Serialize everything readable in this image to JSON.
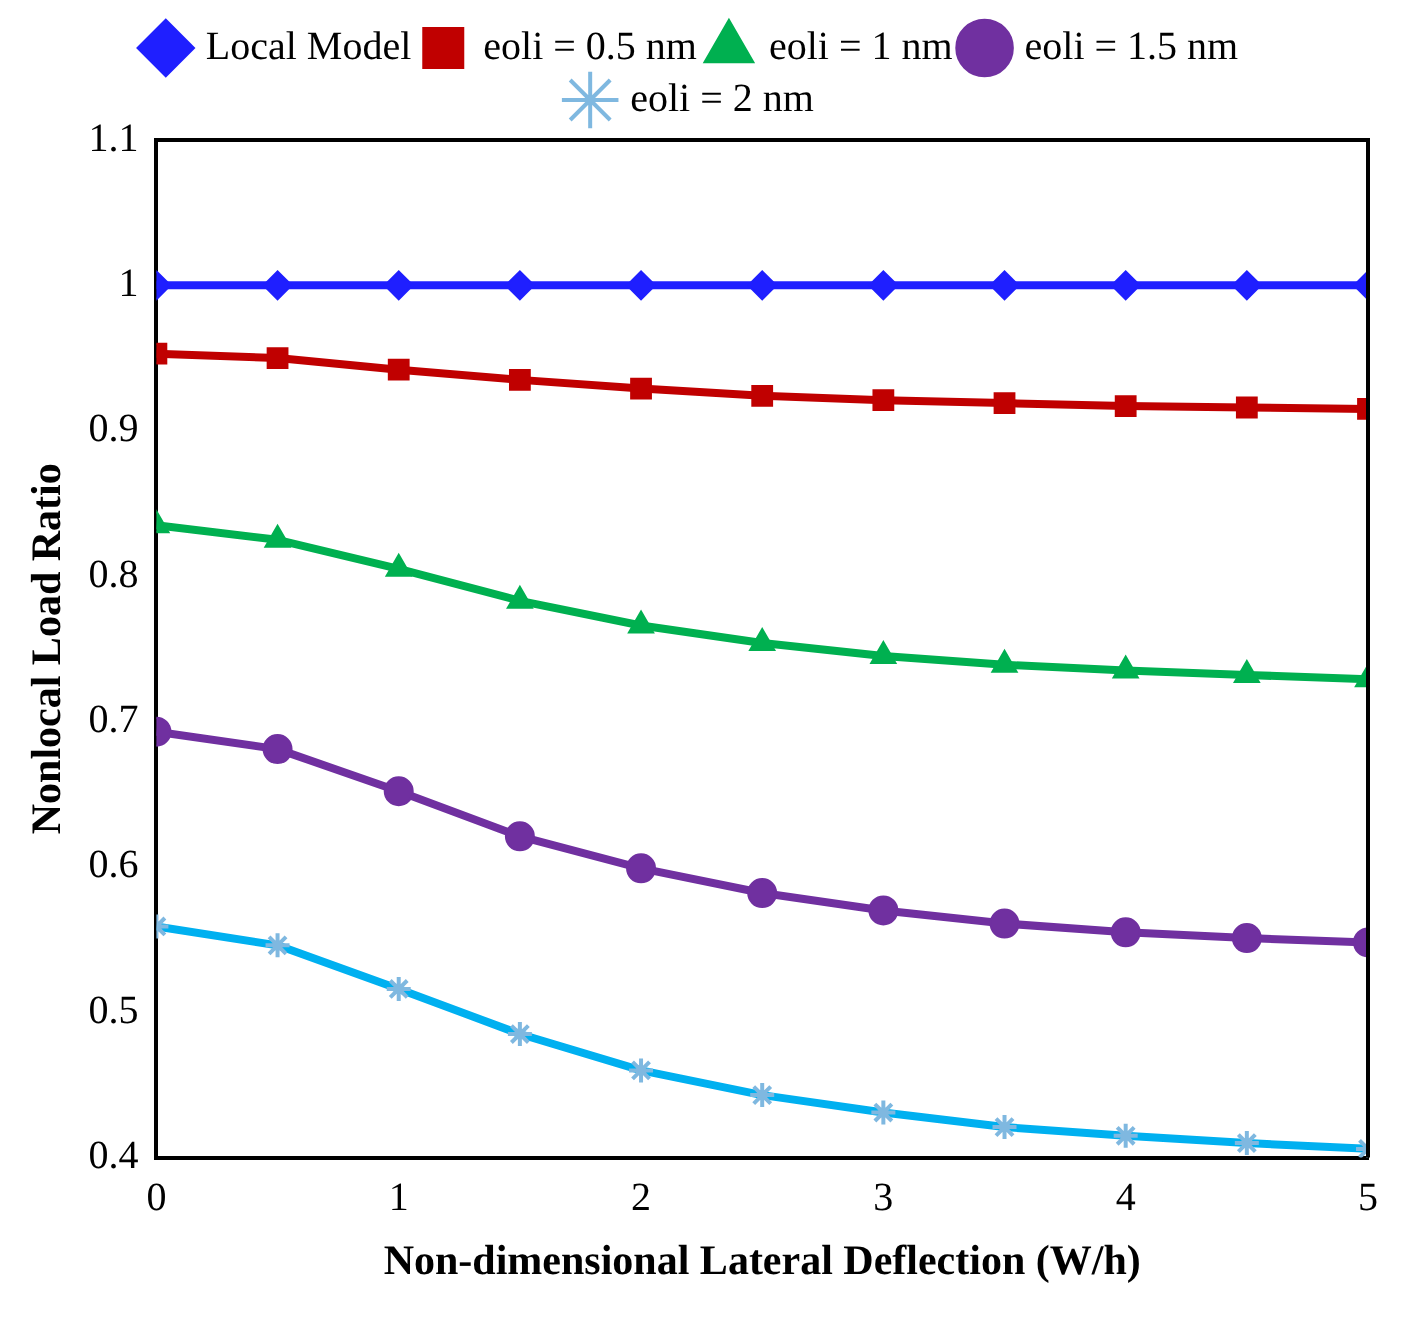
{
  "chart_data": {
    "type": "line",
    "xlabel": "Non-dimensional Lateral Deflection (W/h)",
    "ylabel": "Nonlocal Load Ratio",
    "x": [
      0,
      0.5,
      1,
      1.5,
      2,
      2.5,
      3,
      3.5,
      4,
      4.5,
      5
    ],
    "xlim": [
      0,
      5
    ],
    "xticks": [
      0,
      1,
      2,
      3,
      4,
      5
    ],
    "ylim": [
      0.4,
      1.1
    ],
    "yticks": [
      0.4,
      0.5,
      0.6,
      0.7,
      0.8,
      0.9,
      1,
      1.1
    ],
    "grid": false,
    "legend": "top",
    "line_style": "solid",
    "series": [
      {
        "name": "Local Model",
        "color": "#1f1fff",
        "marker": "diamond",
        "values": [
          1,
          1,
          1,
          1,
          1,
          1,
          1,
          1,
          1,
          1,
          1
        ]
      },
      {
        "name": "eoli = 0.5 nm",
        "color": "#c00000",
        "marker": "square",
        "values": [
          0.953,
          0.95,
          0.942,
          0.935,
          0.929,
          0.924,
          0.921,
          0.919,
          0.917,
          0.916,
          0.915
        ]
      },
      {
        "name": "eoli = 1 nm",
        "color": "#00b050",
        "marker": "triangle",
        "values": [
          0.835,
          0.825,
          0.805,
          0.783,
          0.766,
          0.754,
          0.745,
          0.739,
          0.735,
          0.732,
          0.729
        ]
      },
      {
        "name": "eoli = 1.5 nm",
        "color": "#7030a0",
        "marker": "circle",
        "values": [
          0.693,
          0.681,
          0.652,
          0.621,
          0.599,
          0.582,
          0.57,
          0.561,
          0.555,
          0.551,
          0.548
        ]
      },
      {
        "name": "eoli = 2 nm",
        "color": "#00b0f0",
        "marker": "cross",
        "values": [
          0.559,
          0.546,
          0.516,
          0.485,
          0.46,
          0.443,
          0.431,
          0.421,
          0.415,
          0.41,
          0.406
        ]
      }
    ]
  }
}
